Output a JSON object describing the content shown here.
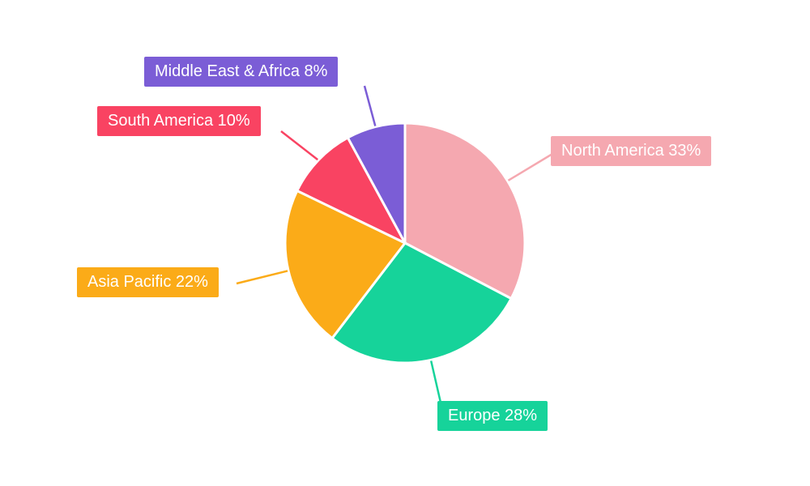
{
  "chart_data": {
    "type": "pie",
    "categories": [
      "North America",
      "Europe",
      "Asia Pacific",
      "South America",
      "Middle East & Africa"
    ],
    "values": [
      33,
      28,
      22,
      10,
      8
    ],
    "unit": "%",
    "labels": [
      "North America 33%",
      "Europe 28%",
      "Asia Pacific 22%",
      "South America 10%",
      "Middle East & Africa 8%"
    ],
    "colors": [
      "#F5A8B0",
      "#16D39A",
      "#FBAB18",
      "#F94362",
      "#7B5DD6"
    ],
    "background": "#ffffff",
    "legend": "none",
    "label_style": "callout-boxes",
    "start_angle_deg": 0,
    "direction": "clockwise",
    "slice_gap_color": "#ffffff"
  }
}
